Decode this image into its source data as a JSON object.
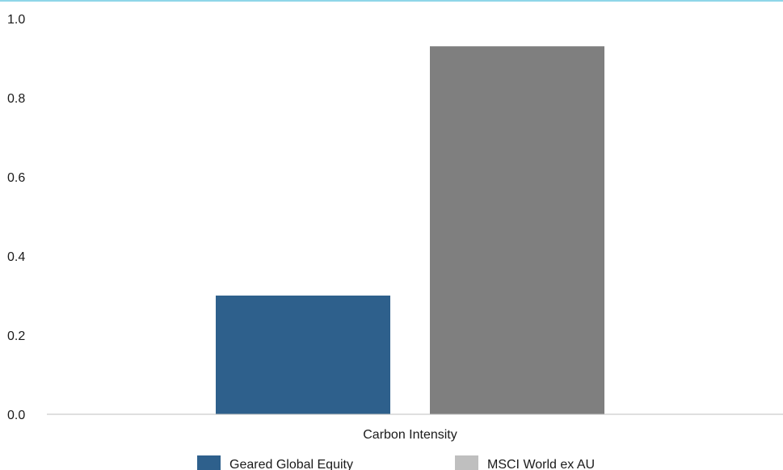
{
  "chart_data": {
    "type": "bar",
    "categories": [
      "Carbon Intensity"
    ],
    "series": [
      {
        "name": "Geared Global Equity",
        "values": [
          0.3
        ],
        "color": "#2e608c",
        "legend_color": "#2e608c"
      },
      {
        "name": "MSCI World ex AU",
        "values": [
          0.93
        ],
        "color": "#7f7f7f",
        "legend_color": "#bfbfbf"
      }
    ],
    "ylim": [
      0,
      1.0
    ],
    "yticks": [
      "0.0",
      "0.2",
      "0.4",
      "0.6",
      "0.8",
      "1.0"
    ],
    "ytick_values": [
      0,
      0.2,
      0.4,
      0.6,
      0.8,
      1.0
    ],
    "grid": false,
    "legend_position": "bottom",
    "title": "",
    "xlabel": "",
    "ylabel": "",
    "accent_color": "#8fd6e8"
  }
}
